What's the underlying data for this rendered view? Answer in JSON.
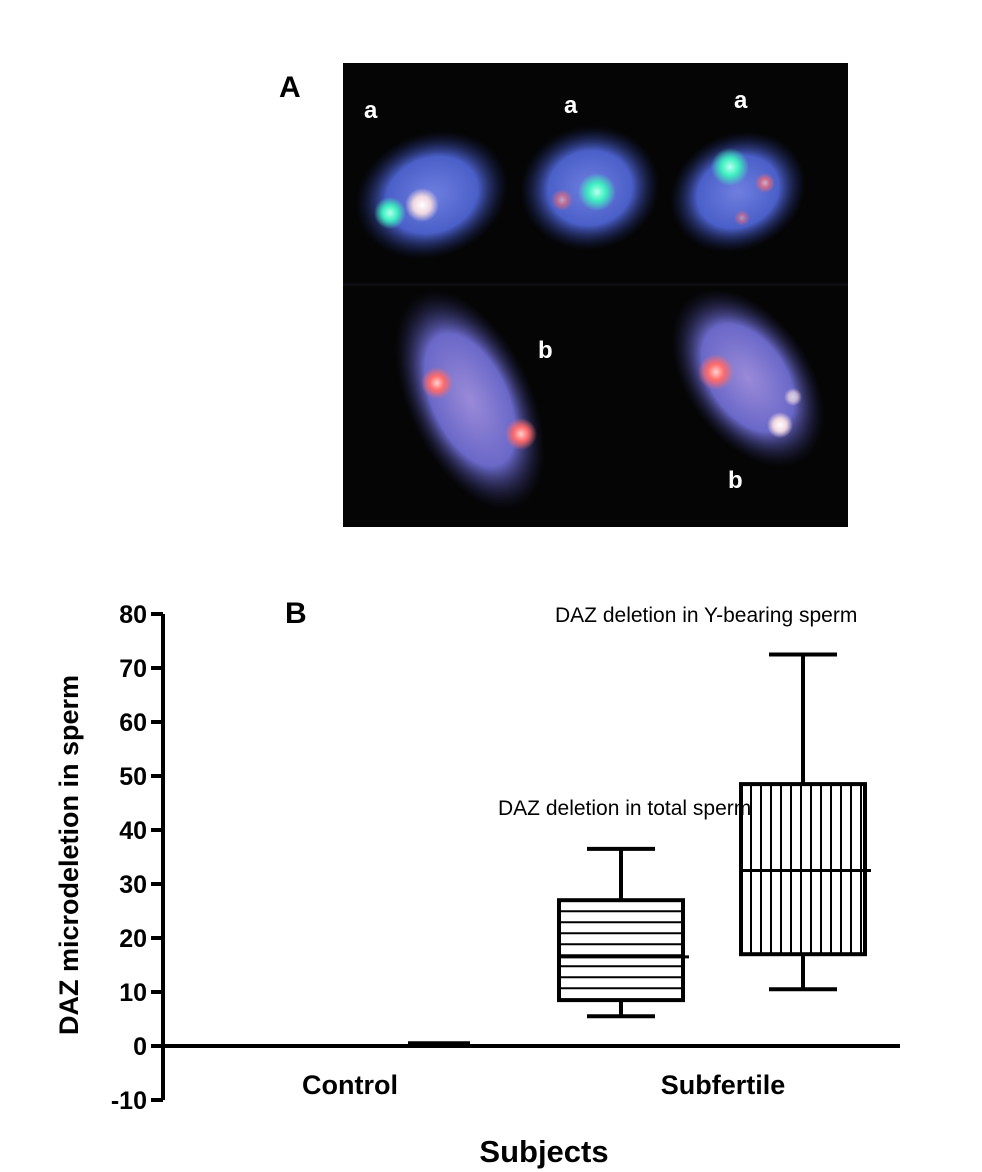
{
  "panel_a": {
    "label": "A",
    "cell_labels": [
      "a",
      "a",
      "a",
      "b",
      "b"
    ]
  },
  "panel_b": {
    "label": "B"
  },
  "colors": {
    "background": "#ffffff",
    "ink": "#000000",
    "micrograph_bg": "#050505",
    "nucleus_blue": "#4a5fc8",
    "signal_green": "#3ef0c0",
    "signal_red": "#ff6a6a"
  },
  "chart_data": {
    "type": "box",
    "title": "",
    "xlabel": "Subjects",
    "ylabel": "DAZ microdeletion in sperm",
    "ylim": [
      -10,
      80
    ],
    "yticks": [
      -10,
      0,
      10,
      20,
      30,
      40,
      50,
      60,
      70,
      80
    ],
    "categories": [
      "Control",
      "Subfertile"
    ],
    "grid": false,
    "control_value": 0.5,
    "series": [
      {
        "name": "DAZ deletion in total sperm",
        "category": "Subfertile",
        "hatch": "horizontal",
        "min": 5.5,
        "q1": 8.5,
        "median": 16.5,
        "q3": 27,
        "max": 36.5
      },
      {
        "name": "DAZ deletion in Y-bearing sperm",
        "category": "Subfertile",
        "hatch": "vertical",
        "min": 10.5,
        "q1": 17,
        "median": 32.5,
        "q3": 48.5,
        "max": 72.5
      }
    ]
  }
}
